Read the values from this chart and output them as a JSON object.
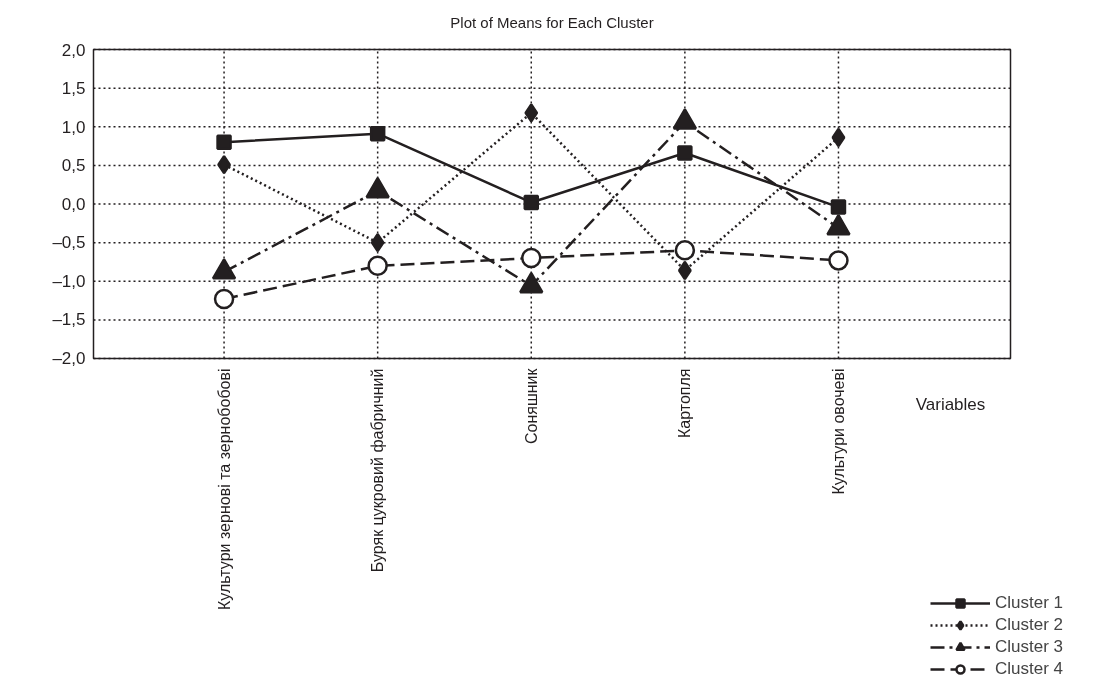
{
  "chart_data": {
    "type": "line",
    "title": "Plot of Means for Each Cluster",
    "xlabel": "Variables",
    "categories": [
      "Культури зернові та зернобобові",
      "Буряк цукровий фабричний",
      "Соняшник",
      "Картопля",
      "Культури овочеві"
    ],
    "series": [
      {
        "name": "Cluster 1",
        "color": "#231f20",
        "marker": "square",
        "line_style": "solid",
        "values": [
          0.8,
          0.91,
          0.02,
          0.66,
          -0.04
        ]
      },
      {
        "name": "Cluster 2",
        "color": "#231f20",
        "marker": "diamond",
        "line_style": "dotted",
        "values": [
          0.51,
          -0.5,
          1.18,
          -0.86,
          0.86
        ]
      },
      {
        "name": "Cluster 3",
        "color": "#231f20",
        "marker": "triangle",
        "line_style": "dashdot",
        "values": [
          -0.88,
          0.17,
          -1.06,
          1.06,
          -0.31
        ]
      },
      {
        "name": "Cluster 4",
        "color": "#231f20",
        "marker": "circle",
        "line_style": "dashed",
        "values": [
          -1.23,
          -0.8,
          -0.7,
          -0.6,
          -0.73
        ]
      }
    ],
    "ylim": [
      -2.0,
      2.0
    ],
    "yticks": [
      {
        "value": -2.0,
        "label": "–2,0"
      },
      {
        "value": -1.5,
        "label": "–1,5"
      },
      {
        "value": -1.0,
        "label": "–1,0"
      },
      {
        "value": -0.5,
        "label": "–0,5"
      },
      {
        "value": 0.0,
        "label": "0,0"
      },
      {
        "value": 0.5,
        "label": "0,5"
      },
      {
        "value": 1.0,
        "label": "1,0"
      },
      {
        "value": 1.5,
        "label": "1,5"
      },
      {
        "value": 2.0,
        "label": "2,0"
      }
    ],
    "grid": true,
    "legend": "bottom right"
  }
}
